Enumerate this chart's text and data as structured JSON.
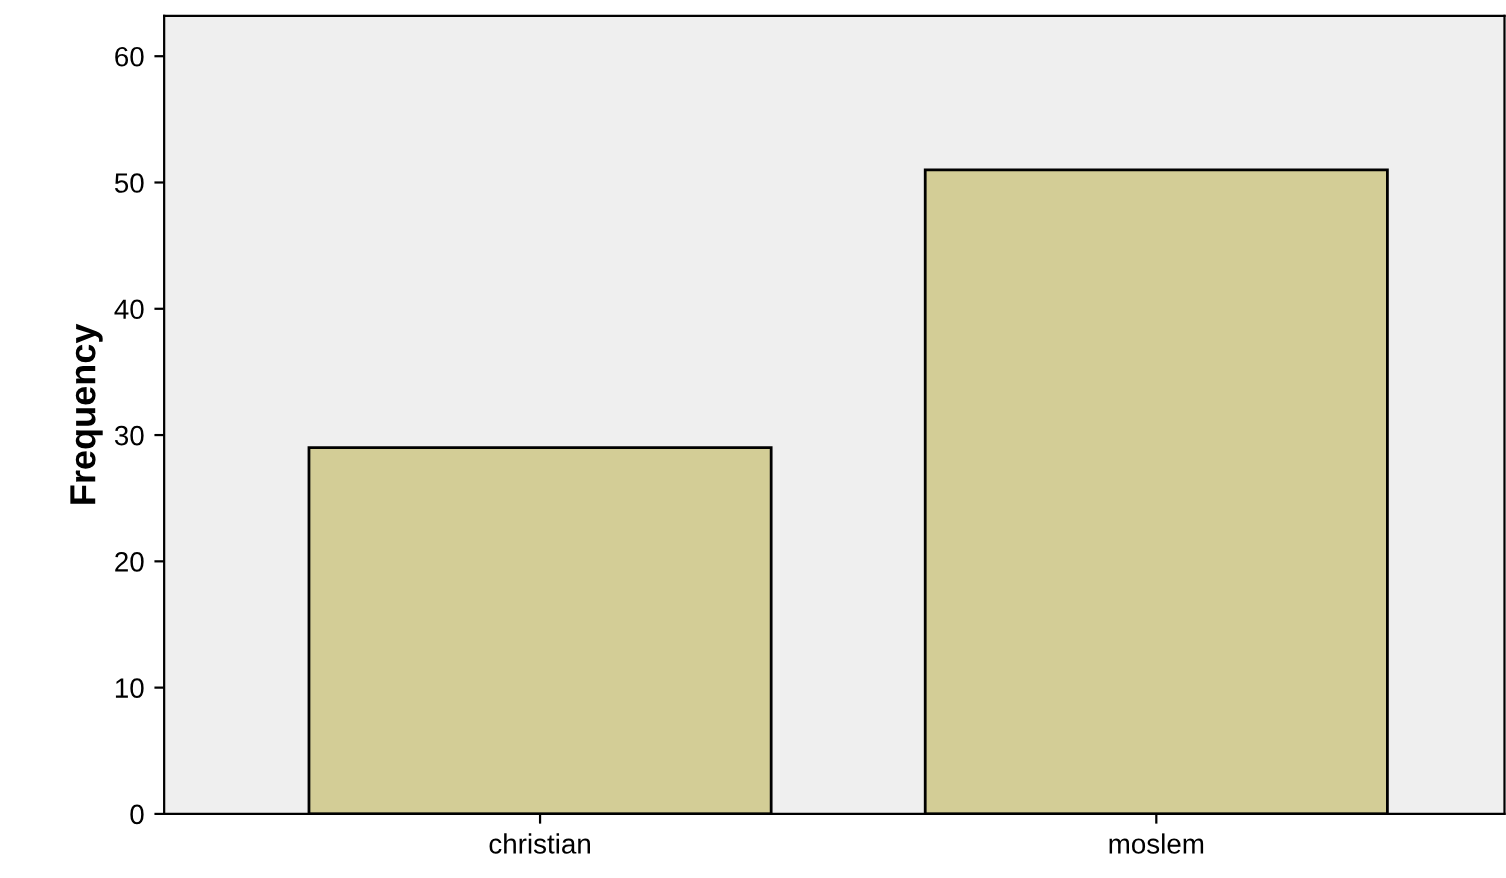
{
  "chart_data": {
    "type": "bar",
    "ylabel": "Frequency",
    "categories": [
      "christian",
      "moslem"
    ],
    "values": [
      29,
      51
    ],
    "color": "#d3cd96",
    "ylim": [
      0,
      63.2
    ],
    "yticks": [
      0,
      10,
      20,
      30,
      40,
      50,
      60
    ],
    "grid": false
  }
}
